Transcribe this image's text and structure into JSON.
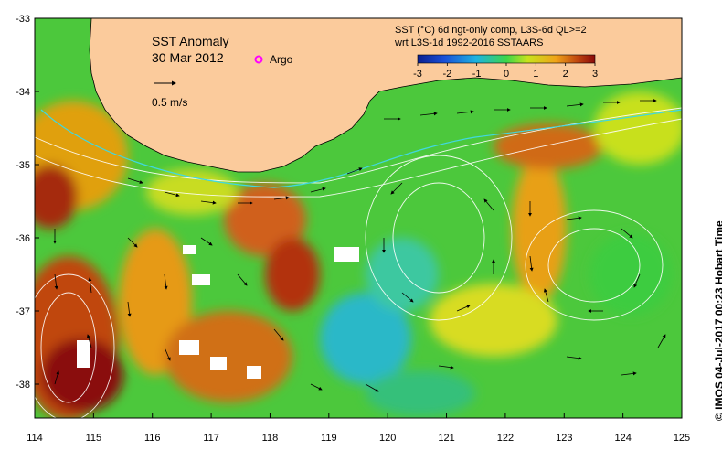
{
  "title": {
    "line1": "SST Anomaly",
    "line2": "30 Mar 2012"
  },
  "legend": {
    "argo_label": "Argo",
    "argo_color": "#ff00ff",
    "velocity_label": "0.5 m/s"
  },
  "colorbar": {
    "line1": "SST (°C) 6d ngt-only comp, L3S-6d QL>=2",
    "line2": "wrt L3S-1d 1992-2016 SSTAARS",
    "ticks": [
      "-3",
      "-2",
      "-1",
      "0",
      "1",
      "2",
      "3"
    ],
    "colors": [
      "#0a1f8f",
      "#1a50d8",
      "#1fb3e0",
      "#3cd64a",
      "#c8e31c",
      "#f0a319",
      "#c0470f",
      "#8a0a0a"
    ]
  },
  "axes": {
    "x_ticks": [
      "114",
      "115",
      "116",
      "117",
      "118",
      "119",
      "120",
      "121",
      "122",
      "123",
      "124",
      "125"
    ],
    "y_ticks": [
      "-33",
      "-34",
      "-35",
      "-36",
      "-37",
      "-38"
    ]
  },
  "credit": "© IMOS 04-Jul-2017 00:23 Hobart Time",
  "land_color": "#fbcb9c"
}
